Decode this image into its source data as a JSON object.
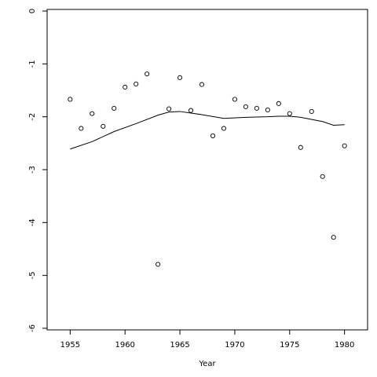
{
  "chart_data": {
    "type": "scatter",
    "x_label": "Year",
    "xlim": [
      1952.9,
      1982.1
    ],
    "ylim": [
      -6.03,
      0.03
    ],
    "xticks": [
      1955,
      1960,
      1965,
      1970,
      1975,
      1980
    ],
    "yticks": [
      0,
      -1,
      -2,
      -3,
      -4,
      -5,
      -6
    ],
    "series": [
      {
        "type": "scatter",
        "color": "#000000",
        "x": [
          1955,
          1956,
          1957,
          1958,
          1959,
          1960,
          1961,
          1962,
          1963,
          1964,
          1965,
          1966,
          1967,
          1968,
          1969,
          1970,
          1971,
          1972,
          1973,
          1974,
          1975,
          1976,
          1977,
          1978,
          1979,
          1980
        ],
        "values": [
          -1.67,
          -2.22,
          -1.94,
          -2.18,
          -1.84,
          -1.44,
          -1.38,
          -1.19,
          -4.79,
          -1.85,
          -1.26,
          -1.88,
          -1.39,
          -2.36,
          -2.22,
          -1.67,
          -1.81,
          -1.84,
          -1.87,
          -1.75,
          -1.94,
          -2.58,
          -1.9,
          -3.13,
          -4.28,
          -2.55
        ]
      },
      {
        "type": "line",
        "color": "#000000",
        "x": [
          1955,
          1957,
          1959,
          1961,
          1963,
          1964,
          1965,
          1967,
          1969,
          1971,
          1973,
          1974,
          1975,
          1976,
          1978,
          1979,
          1980
        ],
        "values": [
          -2.61,
          -2.47,
          -2.28,
          -2.13,
          -1.97,
          -1.91,
          -1.9,
          -1.96,
          -2.03,
          -2.01,
          -2.0,
          -1.99,
          -1.99,
          -2.01,
          -2.09,
          -2.16,
          -2.15
        ]
      }
    ]
  }
}
